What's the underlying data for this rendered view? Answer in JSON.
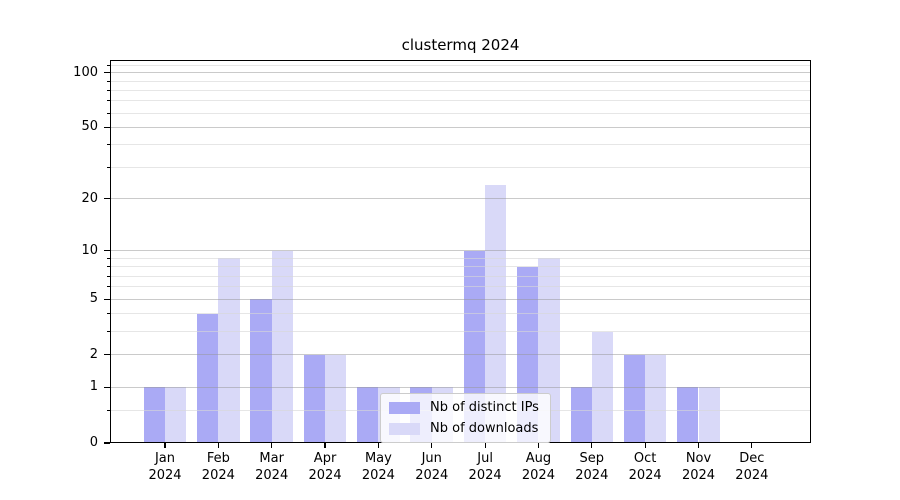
{
  "title": "clustermq 2024",
  "chart_data": {
    "type": "bar",
    "title": "clustermq 2024",
    "scale": "log1p",
    "categories": [
      "Jan 2024",
      "Feb 2024",
      "Mar 2024",
      "Apr 2024",
      "May 2024",
      "Jun 2024",
      "Jul 2024",
      "Aug 2024",
      "Sep 2024",
      "Oct 2024",
      "Nov 2024",
      "Dec 2024"
    ],
    "months": [
      "Jan",
      "Feb",
      "Mar",
      "Apr",
      "May",
      "Jun",
      "Jul",
      "Aug",
      "Sep",
      "Oct",
      "Nov",
      "Dec"
    ],
    "year": "2024",
    "series": [
      {
        "name": "Nb of distinct IPs",
        "color": "#aaaaf5",
        "values": [
          1,
          4,
          5,
          2,
          1,
          1,
          10,
          8,
          1,
          2,
          1,
          0
        ]
      },
      {
        "name": "Nb of downloads",
        "color": "#d9d9f8",
        "values": [
          1,
          9,
          10,
          2,
          1,
          1,
          24,
          9,
          3,
          2,
          1,
          0
        ]
      }
    ],
    "xlabel": "",
    "ylabel": "",
    "ylim": [
      0,
      118
    ],
    "y_major_ticks": [
      0,
      1,
      2,
      5,
      10,
      20,
      50,
      100
    ],
    "y_minor_gridlines": [
      0.5,
      3,
      4,
      6,
      7,
      8,
      9,
      30,
      40,
      60,
      70,
      80,
      90,
      110
    ],
    "grid": "on",
    "legend_position": "lower center"
  },
  "legend": {
    "items": [
      {
        "label": "Nb of distinct IPs"
      },
      {
        "label": "Nb of downloads"
      }
    ]
  }
}
